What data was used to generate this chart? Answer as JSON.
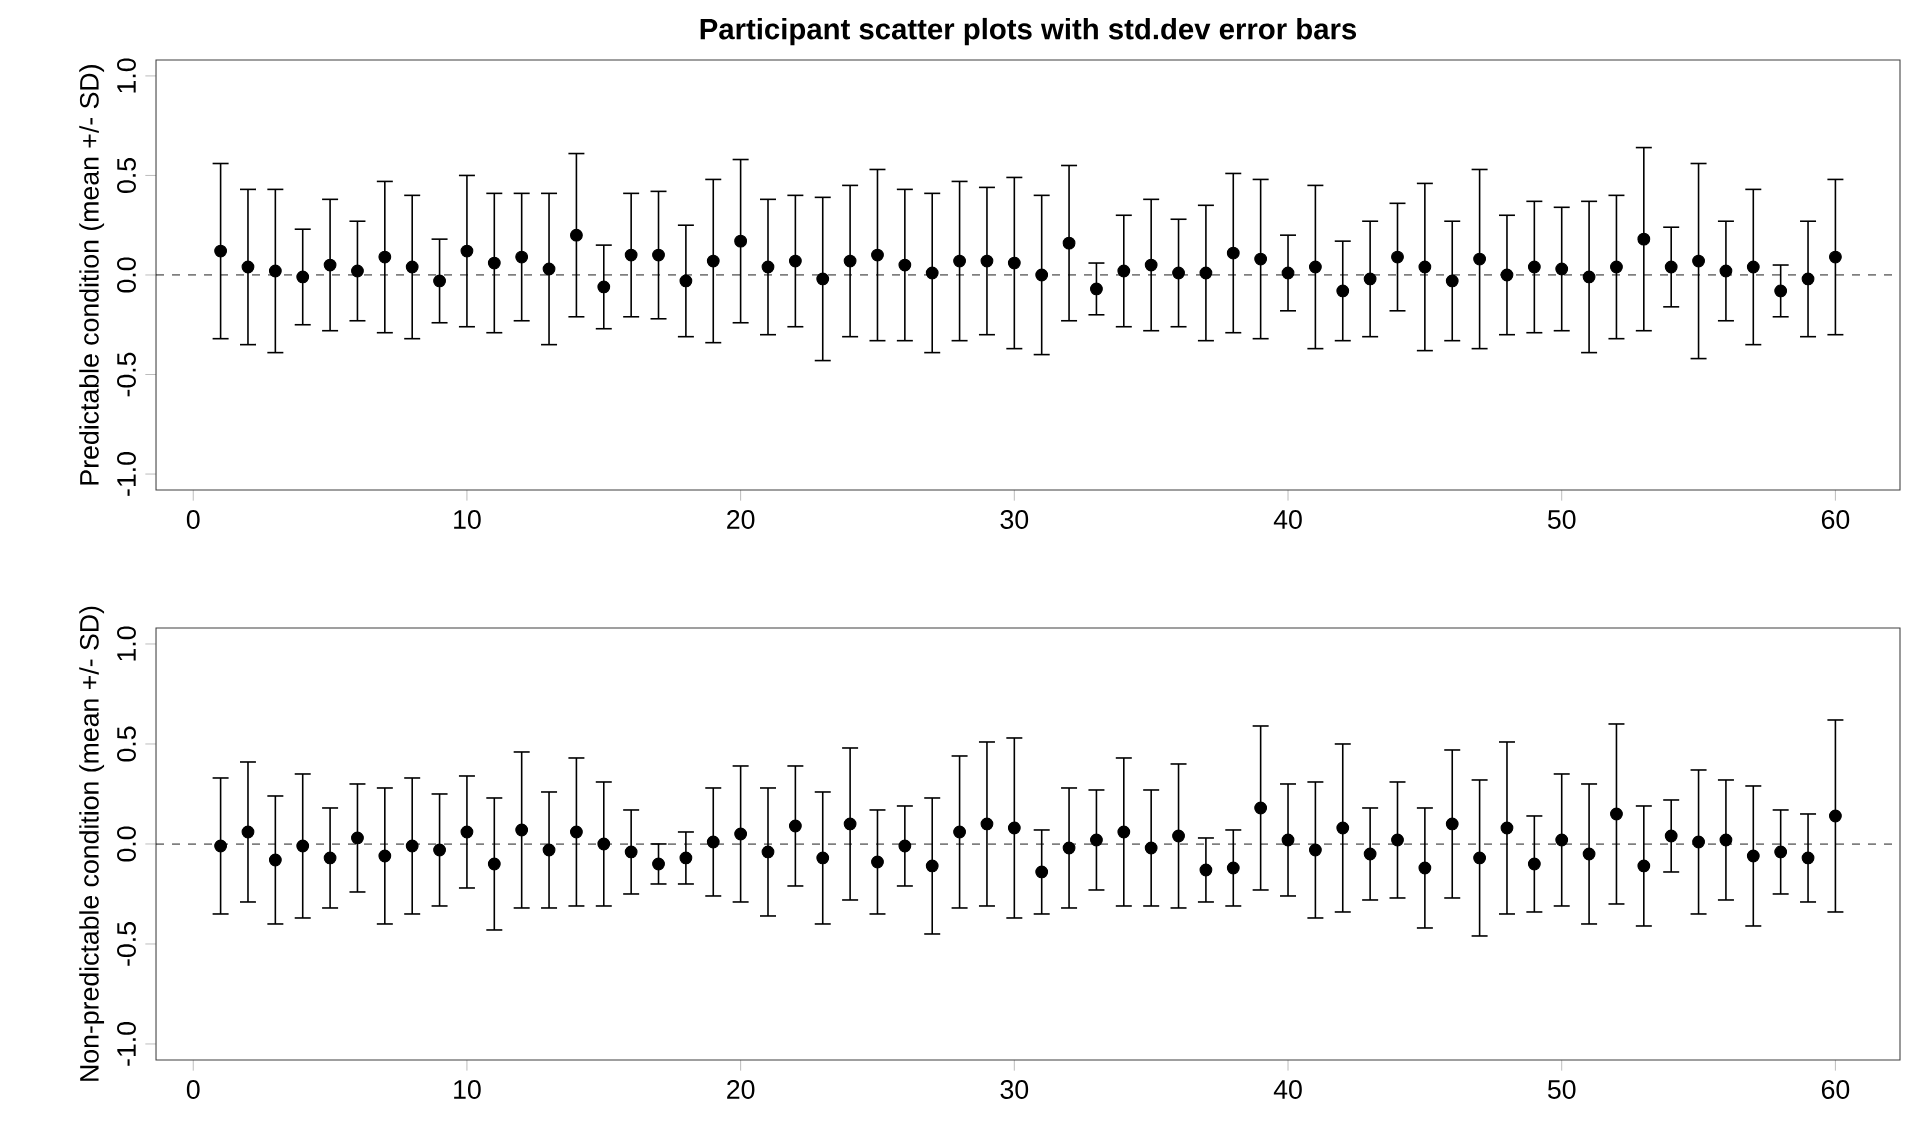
{
  "chart_data": [
    {
      "type": "scatter",
      "title": "Participant scatter plots with std.dev error bars",
      "ylabel": "Predictable condition (mean +/- SD)",
      "marker": "circle",
      "color": "#000000",
      "x": [
        1,
        2,
        3,
        4,
        5,
        6,
        7,
        8,
        9,
        10,
        11,
        12,
        13,
        14,
        15,
        16,
        17,
        18,
        19,
        20,
        21,
        22,
        23,
        24,
        25,
        26,
        27,
        28,
        29,
        30,
        31,
        32,
        33,
        34,
        35,
        36,
        37,
        38,
        39,
        40,
        41,
        42,
        43,
        44,
        45,
        46,
        47,
        48,
        49,
        50,
        51,
        52,
        53,
        54,
        55,
        56,
        57,
        58,
        59,
        60
      ],
      "values": [
        0.12,
        0.04,
        0.02,
        -0.01,
        0.05,
        0.02,
        0.09,
        0.04,
        -0.03,
        0.12,
        0.06,
        0.09,
        0.03,
        0.2,
        -0.06,
        0.1,
        0.1,
        -0.03,
        0.07,
        0.17,
        0.04,
        0.07,
        -0.02,
        0.07,
        0.1,
        0.05,
        0.01,
        0.07,
        0.07,
        0.06,
        0.0,
        0.16,
        -0.07,
        0.02,
        0.05,
        0.01,
        0.01,
        0.11,
        0.08,
        0.01,
        0.04,
        -0.08,
        -0.02,
        0.09,
        0.04,
        -0.03,
        0.08,
        0.0,
        0.04,
        0.03,
        -0.01,
        0.04,
        0.18,
        0.04,
        0.07,
        0.02,
        0.04,
        -0.08,
        -0.02,
        0.09
      ],
      "errors": [
        0.44,
        0.39,
        0.41,
        0.24,
        0.33,
        0.25,
        0.38,
        0.36,
        0.21,
        0.38,
        0.35,
        0.32,
        0.38,
        0.41,
        0.21,
        0.31,
        0.32,
        0.28,
        0.41,
        0.41,
        0.34,
        0.33,
        0.41,
        0.38,
        0.43,
        0.38,
        0.4,
        0.4,
        0.37,
        0.43,
        0.4,
        0.39,
        0.13,
        0.28,
        0.33,
        0.27,
        0.34,
        0.4,
        0.4,
        0.19,
        0.41,
        0.25,
        0.29,
        0.27,
        0.42,
        0.3,
        0.45,
        0.3,
        0.33,
        0.31,
        0.38,
        0.36,
        0.46,
        0.2,
        0.49,
        0.25,
        0.39,
        0.13,
        0.29,
        0.39
      ],
      "xlim": [
        -1.36,
        62.36
      ],
      "ylim": [
        -1.08,
        1.08
      ],
      "xticks": [
        0,
        10,
        20,
        30,
        40,
        50,
        60
      ],
      "yticks": [
        {
          "value": -1,
          "label": "-1.0"
        },
        {
          "value": -0.5,
          "label": "-0.5"
        },
        {
          "value": 0,
          "label": "0.0"
        },
        {
          "value": 0.5,
          "label": "0.5"
        },
        {
          "value": 1,
          "label": "1.0"
        }
      ],
      "ref_lines": [
        {
          "axis": "y",
          "value": 0,
          "line_style": "dashed"
        }
      ]
    },
    {
      "type": "scatter",
      "ylabel": "Non-predictable condition (mean +/- SD)",
      "marker": "circle",
      "color": "#000000",
      "x": [
        1,
        2,
        3,
        4,
        5,
        6,
        7,
        8,
        9,
        10,
        11,
        12,
        13,
        14,
        15,
        16,
        17,
        18,
        19,
        20,
        21,
        22,
        23,
        24,
        25,
        26,
        27,
        28,
        29,
        30,
        31,
        32,
        33,
        34,
        35,
        36,
        37,
        38,
        39,
        40,
        41,
        42,
        43,
        44,
        45,
        46,
        47,
        48,
        49,
        50,
        51,
        52,
        53,
        54,
        55,
        56,
        57,
        58,
        59,
        60
      ],
      "values": [
        -0.01,
        0.06,
        -0.08,
        -0.01,
        -0.07,
        0.03,
        -0.06,
        -0.01,
        -0.03,
        0.06,
        -0.1,
        0.07,
        -0.03,
        0.06,
        0.0,
        -0.04,
        -0.1,
        -0.07,
        0.01,
        0.05,
        -0.04,
        0.09,
        -0.07,
        0.1,
        -0.09,
        -0.01,
        -0.11,
        0.06,
        0.1,
        0.08,
        -0.14,
        -0.02,
        0.02,
        0.06,
        -0.02,
        0.04,
        -0.13,
        -0.12,
        0.18,
        0.02,
        -0.03,
        0.08,
        -0.05,
        0.02,
        -0.12,
        0.1,
        -0.07,
        0.08,
        -0.1,
        0.02,
        -0.05,
        0.15,
        -0.11,
        0.04,
        0.01,
        0.02,
        -0.06,
        -0.04,
        -0.07,
        0.14
      ],
      "errors": [
        0.34,
        0.35,
        0.32,
        0.36,
        0.25,
        0.27,
        0.34,
        0.34,
        0.28,
        0.28,
        0.33,
        0.39,
        0.29,
        0.37,
        0.31,
        0.21,
        0.1,
        0.13,
        0.27,
        0.34,
        0.32,
        0.3,
        0.33,
        0.38,
        0.26,
        0.2,
        0.34,
        0.38,
        0.41,
        0.45,
        0.21,
        0.3,
        0.25,
        0.37,
        0.29,
        0.36,
        0.16,
        0.19,
        0.41,
        0.28,
        0.34,
        0.42,
        0.23,
        0.29,
        0.3,
        0.37,
        0.39,
        0.43,
        0.24,
        0.33,
        0.35,
        0.45,
        0.3,
        0.18,
        0.36,
        0.3,
        0.35,
        0.21,
        0.22,
        0.48
      ],
      "xlim": [
        -1.36,
        62.36
      ],
      "ylim": [
        -1.08,
        1.08
      ],
      "xticks": [
        0,
        10,
        20,
        30,
        40,
        50,
        60
      ],
      "yticks": [
        {
          "value": -1,
          "label": "-1.0"
        },
        {
          "value": -0.5,
          "label": "-0.5"
        },
        {
          "value": 0,
          "label": "0.0"
        },
        {
          "value": 0.5,
          "label": "0.5"
        },
        {
          "value": 1,
          "label": "1.0"
        }
      ],
      "ref_lines": [
        {
          "axis": "y",
          "value": 0,
          "line_style": "dashed"
        }
      ]
    }
  ]
}
